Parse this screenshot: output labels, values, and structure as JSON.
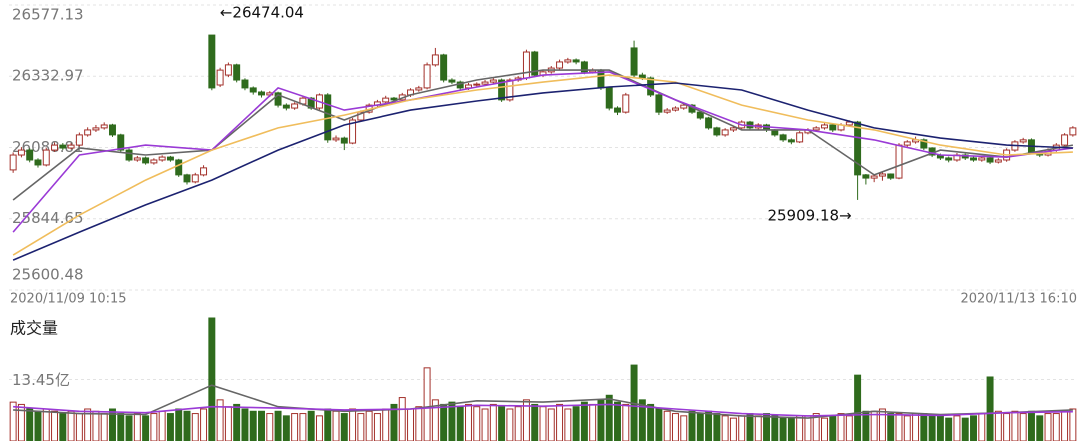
{
  "chart_data": [
    {
      "type": "candlestick",
      "categories": [
        "2020/11/09 10:15",
        null,
        null,
        null,
        null,
        null,
        null,
        null,
        null,
        null,
        null,
        null,
        null,
        null,
        null,
        null,
        null,
        null,
        null,
        null,
        null,
        null,
        null,
        null,
        null,
        null,
        null,
        null,
        null,
        null,
        null,
        null,
        null,
        null,
        null,
        null,
        null,
        null,
        null,
        null,
        null,
        null,
        null,
        null,
        null,
        null,
        null,
        null,
        null,
        null,
        null,
        null,
        null,
        null,
        null,
        null,
        null,
        null,
        null,
        null,
        null,
        null,
        null,
        null,
        null,
        null,
        null,
        null,
        null,
        null,
        null,
        null,
        null,
        null,
        null,
        null,
        null,
        null,
        null,
        null,
        null,
        null,
        null,
        null,
        null,
        null,
        null,
        null,
        null,
        null,
        null,
        null,
        null,
        null,
        null,
        null,
        null,
        null,
        null,
        null,
        null,
        null,
        null,
        null,
        null,
        null,
        null,
        null,
        null,
        null,
        null,
        null,
        null,
        null,
        null,
        null,
        null,
        null,
        null,
        null,
        null,
        null,
        null,
        null,
        null,
        null,
        null,
        null,
        "2020/11/13 16:10"
      ],
      "open": [
        26012,
        26063,
        26080,
        26046,
        26029,
        26080,
        26097,
        26087,
        26097,
        26132,
        26149,
        26156,
        26166,
        26132,
        26080,
        26046,
        26053,
        26036,
        26046,
        26056,
        26046,
        25995,
        25971,
        25995,
        26474.04,
        26303,
        26337,
        26372,
        26320,
        26293,
        26279,
        26269,
        26276,
        26234,
        26224,
        26238,
        26258,
        26224,
        26269,
        26115,
        26121,
        26104,
        26183,
        26210,
        26234,
        26245,
        26258,
        26252,
        26269,
        26286,
        26293,
        26372,
        26406,
        26320,
        26313,
        26293,
        26303,
        26306,
        26313,
        26320,
        26252,
        26320,
        26327,
        26416,
        26337,
        26348,
        26361,
        26382,
        26389,
        26382,
        26348,
        26354,
        26293,
        26224,
        26210,
        26430,
        26337,
        26327,
        26269,
        26210,
        26217,
        26224,
        26234,
        26210,
        26190,
        26156,
        26132,
        26149,
        26156,
        26176,
        26156,
        26166,
        26149,
        26132,
        26115,
        26108,
        26139,
        26149,
        26156,
        26166,
        26149,
        26166,
        26176,
        25995,
        25984,
        25991,
        25998,
        25984,
        26097,
        26108,
        26115,
        26087,
        26063,
        26053,
        26046,
        26063,
        26053,
        26046,
        26053,
        26039,
        26046,
        26080,
        26108,
        26115,
        26073,
        26063,
        26080,
        26097,
        26132
      ],
      "high": [
        26072,
        26090,
        26086,
        26052,
        26088,
        26106,
        26104,
        26105,
        26140,
        26158,
        26166,
        26175,
        26170,
        26136,
        26086,
        26060,
        26058,
        26052,
        26062,
        26060,
        26050,
        25999,
        26002,
        26028,
        26474.04,
        26362,
        26380,
        26376,
        26326,
        26298,
        26284,
        26282,
        26280,
        26240,
        26244,
        26265,
        26262,
        26274,
        26275,
        26130,
        26126,
        26190,
        26216,
        26240,
        26252,
        26266,
        26262,
        26276,
        26292,
        26300,
        26380,
        26430,
        26410,
        26326,
        26318,
        26310,
        26312,
        26320,
        26328,
        26325,
        26326,
        26334,
        26424,
        26420,
        26356,
        26368,
        26390,
        26396,
        26394,
        26386,
        26360,
        26358,
        26298,
        26230,
        26276,
        26455,
        26345,
        26332,
        26274,
        26224,
        26230,
        26240,
        26238,
        26214,
        26194,
        26160,
        26155,
        26162,
        26182,
        26180,
        26172,
        26170,
        26152,
        26136,
        26120,
        26145,
        26155,
        26162,
        26172,
        26170,
        26172,
        26182,
        26180,
        25998,
        25998,
        26004,
        26000,
        26104,
        26114,
        26126,
        26120,
        26090,
        26068,
        26058,
        26070,
        26068,
        26058,
        26060,
        26058,
        26052,
        26086,
        26114,
        26122,
        26120,
        26078,
        26086,
        26104,
        26138,
        26162
      ],
      "low": [
        26002,
        26055,
        26038,
        26020,
        26024,
        26074,
        26080,
        26082,
        26092,
        26126,
        26142,
        26150,
        26125,
        26072,
        26040,
        26040,
        26030,
        26030,
        26040,
        26040,
        25988,
        25962,
        25966,
        25990,
        26285,
        26296,
        26330,
        26312,
        26285,
        26270,
        26260,
        26262,
        26226,
        26216,
        26218,
        26232,
        26218,
        26218,
        26105,
        26108,
        26080,
        26100,
        26178,
        26205,
        26228,
        26240,
        26246,
        26247,
        26262,
        26280,
        26288,
        26366,
        26312,
        26306,
        26285,
        26286,
        26298,
        26300,
        26308,
        26245,
        26246,
        26314,
        26320,
        26330,
        26330,
        26342,
        26355,
        26376,
        26374,
        26340,
        26342,
        26286,
        26216,
        26200,
        26205,
        26330,
        26320,
        26262,
        26200,
        26204,
        26212,
        26218,
        26204,
        26184,
        26150,
        26126,
        26126,
        26142,
        26150,
        26150,
        26150,
        26142,
        26126,
        26108,
        26100,
        26104,
        26134,
        26144,
        26150,
        26142,
        26144,
        26160,
        25909.18,
        25962,
        25970,
        25975,
        25978,
        25980,
        26090,
        26102,
        26080,
        26056,
        26046,
        26038,
        26040,
        26046,
        26040,
        26040,
        26032,
        26034,
        26040,
        26074,
        26102,
        26066,
        26056,
        26058,
        26074,
        26092,
        26126
      ],
      "close": [
        26063,
        26080,
        26046,
        26029,
        26080,
        26097,
        26087,
        26097,
        26132,
        26149,
        26156,
        26166,
        26132,
        26080,
        26046,
        26053,
        26036,
        26046,
        26056,
        26046,
        25995,
        25971,
        25995,
        26019,
        26293,
        26354,
        26372,
        26320,
        26293,
        26279,
        26269,
        26276,
        26234,
        26224,
        26238,
        26258,
        26224,
        26269,
        26115,
        26121,
        26104,
        26183,
        26210,
        26234,
        26245,
        26258,
        26252,
        26269,
        26286,
        26293,
        26372,
        26406,
        26320,
        26313,
        26293,
        26303,
        26306,
        26313,
        26320,
        26252,
        26320,
        26327,
        26416,
        26337,
        26348,
        26361,
        26382,
        26389,
        26382,
        26348,
        26354,
        26293,
        26224,
        26210,
        26269,
        26337,
        26327,
        26269,
        26210,
        26217,
        26224,
        26234,
        26210,
        26190,
        26156,
        26132,
        26149,
        26156,
        26176,
        26156,
        26166,
        26149,
        26132,
        26115,
        26108,
        26139,
        26149,
        26156,
        26166,
        26149,
        26166,
        26176,
        25995,
        25984,
        25991,
        25998,
        25984,
        26097,
        26108,
        26115,
        26087,
        26063,
        26053,
        26046,
        26063,
        26053,
        26046,
        26053,
        26039,
        26046,
        26080,
        26108,
        26115,
        26073,
        26063,
        26080,
        26097,
        26132,
        26156
      ],
      "up_color": "#a3302a",
      "down_color": "#2f6b1d",
      "ylim": [
        25600.48,
        26577.13
      ],
      "yticks": [
        25600.48,
        25844.65,
        26088.81,
        26332.97,
        26577.13
      ],
      "grid": true,
      "annotations": [
        "←26474.04",
        "25909.18→"
      ],
      "lines": [
        {
          "color": "#666666",
          "x": [
            0,
            8,
            16,
            24,
            32,
            40,
            48,
            56,
            64,
            72,
            80,
            88,
            96,
            104,
            112,
            120,
            128
          ],
          "values": [
            25909,
            26087,
            26063,
            26080,
            26269,
            26183,
            26269,
            26320,
            26354,
            26354,
            26252,
            26149,
            26149,
            25995,
            26080,
            26056,
            26097
          ]
        },
        {
          "color": "#9a3ad6",
          "x": [
            0,
            8,
            16,
            24,
            32,
            40,
            48,
            56,
            64,
            72,
            80,
            88,
            96,
            104,
            112,
            120,
            128
          ],
          "values": [
            25799,
            26063,
            26097,
            26080,
            26293,
            26217,
            26252,
            26296,
            26337,
            26348,
            26252,
            26166,
            26149,
            26115,
            26063,
            26056,
            26087
          ]
        },
        {
          "color": "#f0bd5c",
          "x": [
            0,
            8,
            16,
            24,
            32,
            40,
            48,
            56,
            64,
            72,
            80,
            88,
            96,
            104,
            112,
            120,
            128
          ],
          "values": [
            25720,
            25857,
            25977,
            26080,
            26156,
            26200,
            26252,
            26286,
            26313,
            26337,
            26313,
            26234,
            26183,
            26149,
            26097,
            26063,
            26073
          ]
        },
        {
          "color": "#1c2270",
          "x": [
            0,
            8,
            16,
            24,
            32,
            40,
            48,
            56,
            64,
            72,
            80,
            88,
            96,
            104,
            112,
            120,
            128
          ],
          "values": [
            25703,
            25799,
            25892,
            25977,
            26080,
            26166,
            26217,
            26248,
            26276,
            26296,
            26310,
            26286,
            26217,
            26156,
            26121,
            26097,
            26087
          ]
        }
      ]
    },
    {
      "type": "bar",
      "title": "成交量",
      "values": [
        8.5,
        8,
        7,
        6.5,
        7,
        6.5,
        6,
        6.5,
        6,
        7,
        6.5,
        6,
        7,
        6,
        5.5,
        6,
        5.5,
        6,
        6.5,
        6,
        7,
        6.5,
        6,
        7,
        26.9,
        9,
        7.5,
        8,
        7,
        6.5,
        6.5,
        6,
        6.5,
        5.5,
        6,
        6,
        6.5,
        5.5,
        7,
        6.5,
        6,
        7,
        6,
        6.5,
        6,
        7,
        8,
        9.5,
        7,
        7.5,
        16,
        9,
        8,
        8.5,
        7.5,
        8,
        7.5,
        7,
        8,
        7.5,
        7,
        7.5,
        9,
        8,
        7.5,
        7,
        8,
        7,
        7.5,
        8.5,
        8,
        9,
        10,
        8.5,
        8,
        16.6,
        9,
        8,
        7,
        6.5,
        6,
        5.5,
        6.5,
        6,
        6.5,
        6,
        5.5,
        5,
        5.5,
        6,
        5.5,
        6,
        5.5,
        5,
        5,
        5.5,
        5.5,
        6,
        5,
        5.5,
        6,
        5.5,
        14.4,
        6.5,
        6.5,
        7,
        6,
        6,
        5.5,
        6,
        6,
        5.5,
        5.5,
        5,
        5.5,
        5,
        5.5,
        6,
        14,
        6.5,
        6,
        6.5,
        6,
        6.5,
        5.5,
        6,
        6,
        6.5,
        7
      ],
      "ylim": [
        0,
        26.9
      ],
      "yticks": [
        {
          "value": 13.45,
          "label": "13.45亿"
        }
      ],
      "lines": [
        {
          "color": "#666666",
          "x": [
            0,
            8,
            16,
            24,
            32,
            40,
            48,
            56,
            64,
            72,
            80,
            88,
            96,
            104,
            112,
            120,
            128
          ],
          "values": [
            6.8,
            6.0,
            5.8,
            12.2,
            7.5,
            6.5,
            7.0,
            8.8,
            8.5,
            9.2,
            6.5,
            5.5,
            5.0,
            6.5,
            5.8,
            6.2,
            6.8
          ]
        },
        {
          "color": "#9a3ad6",
          "x": [
            0,
            8,
            16,
            24,
            32,
            40,
            48,
            56,
            64,
            72,
            80,
            88,
            96,
            104,
            112,
            120,
            128
          ],
          "values": [
            7.5,
            6.5,
            6.2,
            7.5,
            7.2,
            6.8,
            7.0,
            7.8,
            7.6,
            8.0,
            7.0,
            6.0,
            5.5,
            5.8,
            5.6,
            6.2,
            6.4
          ]
        }
      ]
    }
  ]
}
